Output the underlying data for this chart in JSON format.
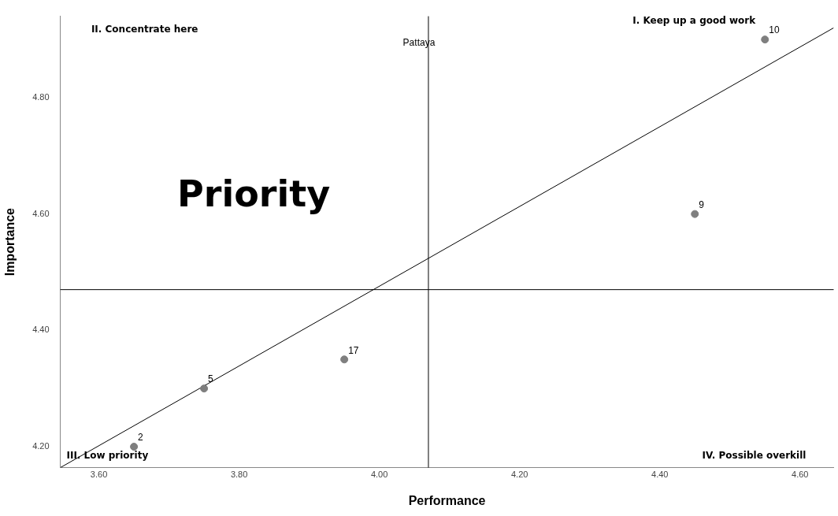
{
  "chart_data": {
    "type": "scatter",
    "xlabel": "Performance",
    "ylabel": "Importance",
    "xlim": [
      3.545,
      4.648
    ],
    "ylim": [
      4.164,
      4.94
    ],
    "xticks": [
      {
        "value": 3.6,
        "label": "3.60"
      },
      {
        "value": 3.8,
        "label": "3.80"
      },
      {
        "value": 4.0,
        "label": "4.00"
      },
      {
        "value": 4.2,
        "label": "4.20"
      },
      {
        "value": 4.4,
        "label": "4.40"
      },
      {
        "value": 4.6,
        "label": "4.60"
      }
    ],
    "yticks": [
      {
        "value": 4.2,
        "label": "4.20"
      },
      {
        "value": 4.4,
        "label": "4.40"
      },
      {
        "value": 4.6,
        "label": "4.60"
      },
      {
        "value": 4.8,
        "label": "4.80"
      }
    ],
    "series": [
      {
        "color": "#7f7f7f",
        "marker": "circle",
        "x": [
          3.65,
          3.75,
          3.95,
          4.45,
          4.55
        ],
        "values": [
          4.2,
          4.3,
          4.35,
          4.6,
          4.9
        ]
      },
      {
        "type": "line",
        "marker": "none",
        "color": "#000000",
        "x": [
          3.545,
          4.648
        ],
        "values": [
          4.164,
          4.92
        ]
      }
    ],
    "ref_lines": [
      {
        "axis": "x",
        "value": 4.07,
        "label": "Pattaya",
        "color": "#000000"
      },
      {
        "axis": "y",
        "value": 4.47,
        "label": null,
        "color": "#000000"
      }
    ],
    "annotations": [
      "II. Concentrate here",
      "I. Keep up a good work",
      "Priority",
      "III. Low priority",
      "IV. Possible overkill",
      {
        "text": "2",
        "x": 3.65,
        "y": 4.2
      },
      {
        "text": "5",
        "x": 3.75,
        "y": 4.3
      },
      {
        "text": "17",
        "x": 3.95,
        "y": 4.35
      },
      {
        "text": "9",
        "x": 4.45,
        "y": 4.6
      },
      {
        "text": "10",
        "x": 4.55,
        "y": 4.9
      }
    ],
    "line_style": "solid",
    "grid": false,
    "legend": false
  }
}
